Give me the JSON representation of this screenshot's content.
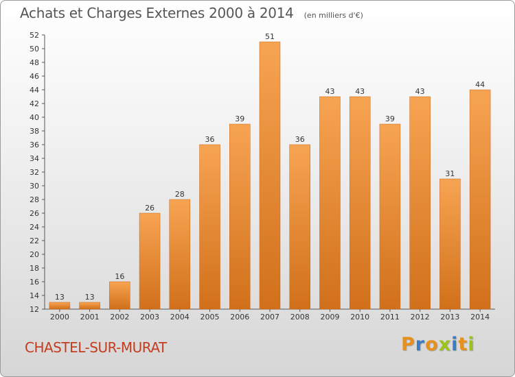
{
  "header": {
    "title": "Achats et Charges Externes 2000 à 2014",
    "unit": "(en milliers d'€)"
  },
  "footer": {
    "commune": "CHASTEL-SUR-MURAT",
    "brand": "Proxiti"
  },
  "colors": {
    "bar_light": "#f7a452",
    "bar_dark": "#d1701a",
    "title": "#555555",
    "commune": "#c33c1e",
    "brand_letters": [
      "#e8901c",
      "#3a7cc4",
      "#e8901c",
      "#9bc31c",
      "#3a7cc4",
      "#e8901c",
      "#9bc31c"
    ]
  },
  "chart_data": {
    "type": "bar",
    "title": "Achats et Charges Externes 2000 à 2014",
    "subtitle": "(en milliers d'€)",
    "xlabel": "",
    "ylabel": "",
    "categories": [
      "2000",
      "2001",
      "2002",
      "2003",
      "2004",
      "2005",
      "2006",
      "2007",
      "2008",
      "2009",
      "2010",
      "2011",
      "2012",
      "2013",
      "2014"
    ],
    "values": [
      13,
      13,
      16,
      26,
      28,
      36,
      39,
      51,
      36,
      43,
      43,
      39,
      43,
      31,
      44
    ],
    "ylim": [
      12,
      52
    ],
    "yticks": [
      12,
      14,
      16,
      18,
      20,
      22,
      24,
      26,
      28,
      30,
      32,
      34,
      36,
      38,
      40,
      42,
      44,
      46,
      48,
      50,
      52
    ],
    "grid": false,
    "legend": "none"
  }
}
